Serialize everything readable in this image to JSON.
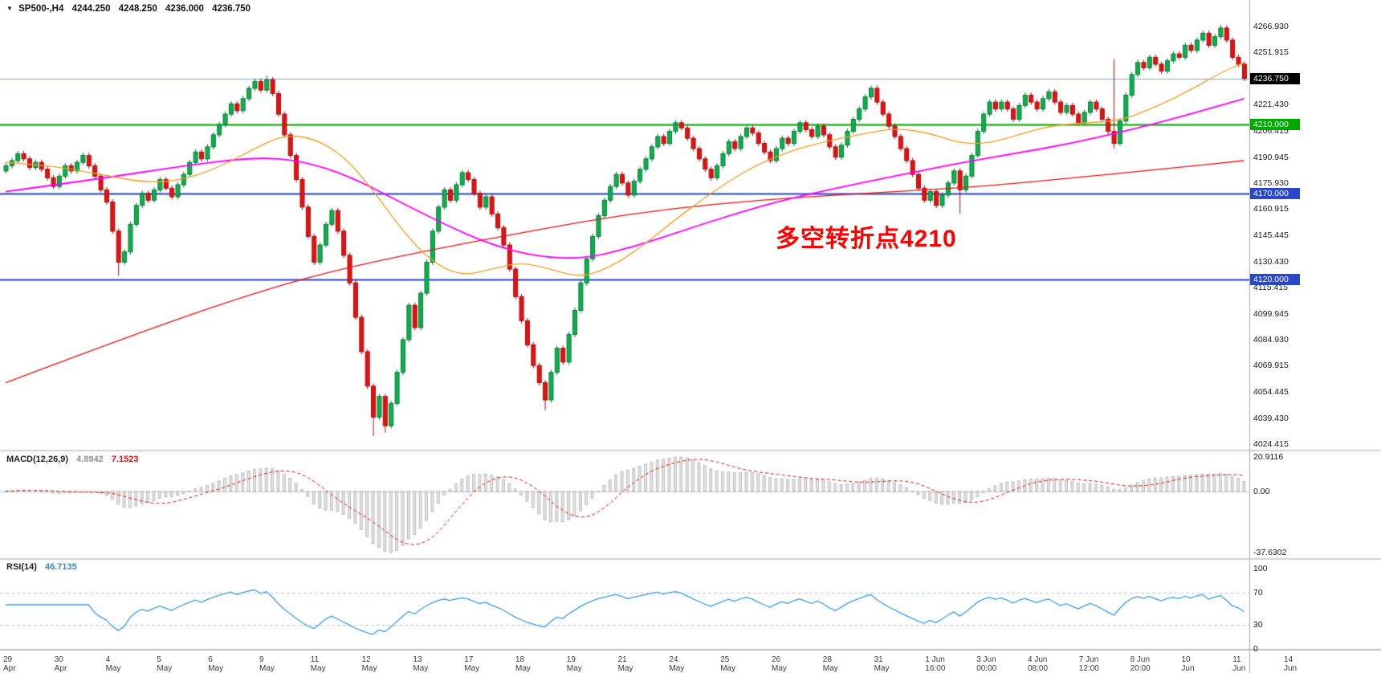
{
  "window": {
    "title_symbol": "SP500-,H4",
    "ohlc": {
      "open": "4244.250",
      "high": "4248.250",
      "low": "4236.000",
      "close": "4236.750"
    }
  },
  "annotation": {
    "text": "多空转折点4210",
    "color": "#ff0000"
  },
  "indicators": {
    "macd": {
      "name": "MACD(12,26,9)",
      "value": "4.8942",
      "signal": "7.1523"
    },
    "rsi": {
      "name": "RSI(14)",
      "value": "46.7135"
    }
  },
  "axes": {
    "price_ticks": [
      "4266.930",
      "4251.915",
      "4221.430",
      "4206.415",
      "4190.945",
      "4175.930",
      "4160.915",
      "4145.445",
      "4130.430",
      "4115.415",
      "4099.945",
      "4084.930",
      "4069.915",
      "4054.445",
      "4039.430",
      "4024.415"
    ],
    "current_price": {
      "label": "4236.750",
      "value": 4236.75,
      "bg": "#000000"
    },
    "level_badges": [
      {
        "label": "4210.000",
        "value": 4210,
        "bg": "#00a800"
      },
      {
        "label": "4170.000",
        "value": 4170,
        "bg": "#2947c8"
      },
      {
        "label": "4120.000",
        "value": 4120,
        "bg": "#2947c8"
      }
    ],
    "macd_ticks": [
      {
        "label": "20.9116",
        "value": 20.9116
      },
      {
        "label": "0.00",
        "value": 0
      },
      {
        "label": "-37.6302",
        "value": -37.6302
      }
    ],
    "rsi_ticks": [
      {
        "label": "100",
        "value": 100
      },
      {
        "label": "70",
        "value": 70
      },
      {
        "label": "30",
        "value": 30
      },
      {
        "label": "0",
        "value": 0
      }
    ],
    "time_labels": [
      "29 Apr 2021",
      "30 Apr 20:00",
      "4 May 00:00",
      "5 May 08:00",
      "6 May 16:00",
      "9 May 23:00",
      "11 May 04:00",
      "12 May 12:00",
      "13 May 20:00",
      "17 May 00:00",
      "18 May 08:00",
      "19 May 16:00",
      "21 May 00:00",
      "24 May 04:00",
      "25 May 12:00",
      "26 May 20:00",
      "28 May 04:00",
      "31 May 08:00",
      "1 Jun 16:00",
      "3 Jun 00:00",
      "4 Jun 08:00",
      "7 Jun 12:00",
      "8 Jun 20:00",
      "10 Jun 04:00",
      "11 Jun 12:00",
      "14 Jun 16:00"
    ]
  },
  "chart_data": {
    "type": "candlestick",
    "symbol": "SP500-",
    "timeframe": "H4",
    "title": "SP500- H4 with MACD(12,26,9) and RSI(14)",
    "price_axis_range": [
      4020.6,
      4282.3
    ],
    "first_open": 4183,
    "closes": [
      4186,
      4189,
      4193,
      4190,
      4185,
      4188,
      4184,
      4179,
      4174,
      4180,
      4186,
      4183,
      4188,
      4192,
      4186,
      4180,
      4172,
      4165,
      4148,
      4130,
      4136,
      4152,
      4163,
      4170,
      4166,
      4172,
      4178,
      4173,
      4168,
      4175,
      4181,
      4188,
      4194,
      4190,
      4197,
      4204,
      4210,
      4216,
      4222,
      4218,
      4225,
      4231,
      4235,
      4230,
      4236,
      4228,
      4216,
      4204,
      4192,
      4178,
      4162,
      4145,
      4130,
      4140,
      4152,
      4160,
      4148,
      4134,
      4118,
      4098,
      4078,
      4058,
      4040,
      4052,
      4035,
      4048,
      4066,
      4085,
      4105,
      4092,
      4112,
      4130,
      4148,
      4162,
      4172,
      4166,
      4175,
      4182,
      4178,
      4170,
      4162,
      4168,
      4158,
      4150,
      4140,
      4126,
      4110,
      4096,
      4082,
      4070,
      4060,
      4050,
      4066,
      4080,
      4072,
      4088,
      4102,
      4118,
      4132,
      4145,
      4157,
      4166,
      4174,
      4181,
      4176,
      4169,
      4177,
      4184,
      4190,
      4197,
      4203,
      4199,
      4206,
      4211,
      4208,
      4202,
      4196,
      4190,
      4184,
      4179,
      4186,
      4193,
      4200,
      4196,
      4203,
      4208,
      4205,
      4199,
      4194,
      4189,
      4196,
      4202,
      4199,
      4206,
      4211,
      4207,
      4203,
      4209,
      4204,
      4197,
      4191,
      4198,
      4206,
      4213,
      4219,
      4226,
      4231,
      4223,
      4216,
      4209,
      4203,
      4196,
      4189,
      4181,
      4173,
      4166,
      4171,
      4163,
      4169,
      4176,
      4183,
      4172,
      4180,
      4192,
      4206,
      4216,
      4223,
      4219,
      4223,
      4219,
      4213,
      4221,
      4227,
      4223,
      4219,
      4225,
      4229,
      4223,
      4217,
      4221,
      4216,
      4211,
      4217,
      4223,
      4219,
      4213,
      4206,
      4199,
      4212,
      4227,
      4239,
      4246,
      4243,
      4249,
      4245,
      4241,
      4247,
      4251,
      4249,
      4256,
      4253,
      4259,
      4263,
      4256,
      4261,
      4266,
      4259,
      4249,
      4245,
      4236.75
    ],
    "wick_extra": 1.6,
    "wick_overrides": {
      "19": {
        "low": 4122
      },
      "44": {
        "high": 4238.5
      },
      "62": {
        "low": 4029
      },
      "64": {
        "low": 4031
      },
      "91": {
        "low": 4044
      },
      "161": {
        "low": 4158
      },
      "187": {
        "low": 4196,
        "high": 4248
      },
      "205": {
        "high": 4267.9
      }
    },
    "hlines": [
      {
        "value": 4236.75,
        "color": "#86a7c7",
        "width": 1,
        "role": "current-price-line"
      },
      {
        "value": 4210,
        "color": "#00a800",
        "width": 2,
        "role": "pivot-line-4210"
      },
      {
        "value": 4170,
        "color": "#2947c8",
        "width": 2,
        "role": "support-line-4170"
      },
      {
        "value": 4120,
        "color": "#2947c8",
        "width": 2,
        "role": "support-line-4120"
      }
    ],
    "moving_averages": [
      {
        "name": "slow-ma",
        "color": "#e81414",
        "width": 1.3,
        "points": [
          [
            0,
            4060
          ],
          [
            20,
            4086
          ],
          [
            40,
            4110
          ],
          [
            54,
            4124
          ],
          [
            70,
            4136
          ],
          [
            90,
            4149
          ],
          [
            105,
            4158
          ],
          [
            120,
            4164
          ],
          [
            135,
            4168
          ],
          [
            150,
            4171
          ],
          [
            165,
            4174
          ],
          [
            180,
            4179
          ],
          [
            195,
            4184
          ],
          [
            209,
            4189
          ]
        ]
      },
      {
        "name": "medium-ma",
        "color": "#ff00ff",
        "width": 1.8,
        "points": [
          [
            0,
            4171
          ],
          [
            15,
            4178
          ],
          [
            30,
            4186
          ],
          [
            42,
            4191
          ],
          [
            50,
            4189
          ],
          [
            58,
            4180
          ],
          [
            66,
            4166
          ],
          [
            74,
            4152
          ],
          [
            82,
            4140
          ],
          [
            90,
            4133
          ],
          [
            98,
            4132
          ],
          [
            106,
            4139
          ],
          [
            114,
            4148
          ],
          [
            122,
            4157
          ],
          [
            130,
            4165
          ],
          [
            140,
            4173
          ],
          [
            150,
            4180
          ],
          [
            160,
            4187
          ],
          [
            170,
            4193
          ],
          [
            180,
            4199
          ],
          [
            190,
            4207
          ],
          [
            200,
            4216
          ],
          [
            209,
            4225
          ]
        ]
      },
      {
        "name": "fast-ma",
        "color": "#f0a028",
        "width": 1.3,
        "points": [
          [
            0,
            4188
          ],
          [
            8,
            4186
          ],
          [
            16,
            4181
          ],
          [
            24,
            4176
          ],
          [
            30,
            4178
          ],
          [
            36,
            4185
          ],
          [
            42,
            4196
          ],
          [
            47,
            4204
          ],
          [
            52,
            4202
          ],
          [
            57,
            4192
          ],
          [
            62,
            4172
          ],
          [
            67,
            4148
          ],
          [
            72,
            4130
          ],
          [
            77,
            4122
          ],
          [
            82,
            4126
          ],
          [
            87,
            4130
          ],
          [
            92,
            4126
          ],
          [
            97,
            4121
          ],
          [
            102,
            4127
          ],
          [
            107,
            4138
          ],
          [
            112,
            4152
          ],
          [
            117,
            4165
          ],
          [
            122,
            4177
          ],
          [
            127,
            4187
          ],
          [
            132,
            4194
          ],
          [
            138,
            4200
          ],
          [
            144,
            4204
          ],
          [
            150,
            4208
          ],
          [
            156,
            4205
          ],
          [
            161,
            4199
          ],
          [
            166,
            4199
          ],
          [
            171,
            4204
          ],
          [
            176,
            4209
          ],
          [
            182,
            4211
          ],
          [
            188,
            4212
          ],
          [
            194,
            4220
          ],
          [
            200,
            4230
          ],
          [
            205,
            4240
          ],
          [
            209,
            4246
          ]
        ]
      }
    ],
    "macd": {
      "params": [
        12,
        26,
        9
      ],
      "current": 4.8942,
      "current_signal": 7.1523,
      "hist_max": 20.9116,
      "hist_min": -37.6302
    },
    "rsi": {
      "period": 14,
      "current": 46.7135,
      "levels": [
        70,
        30
      ],
      "range": [
        0,
        100
      ]
    }
  },
  "colors": {
    "up_fill": "#0faf4f",
    "up_border": "#067a34",
    "down_fill": "#e31212",
    "down_border": "#a50d0d",
    "macd_hist_fill": "#e4e4e4",
    "macd_hist_stroke": "#9a9a9a",
    "macd_signal": "#e01010",
    "rsi_line": "#3e9bdf",
    "rsi_level": "#b3c9dd",
    "panel_border": "#a8a8a8",
    "zero_line": "#c8c8c8",
    "background": "#ffffff"
  }
}
